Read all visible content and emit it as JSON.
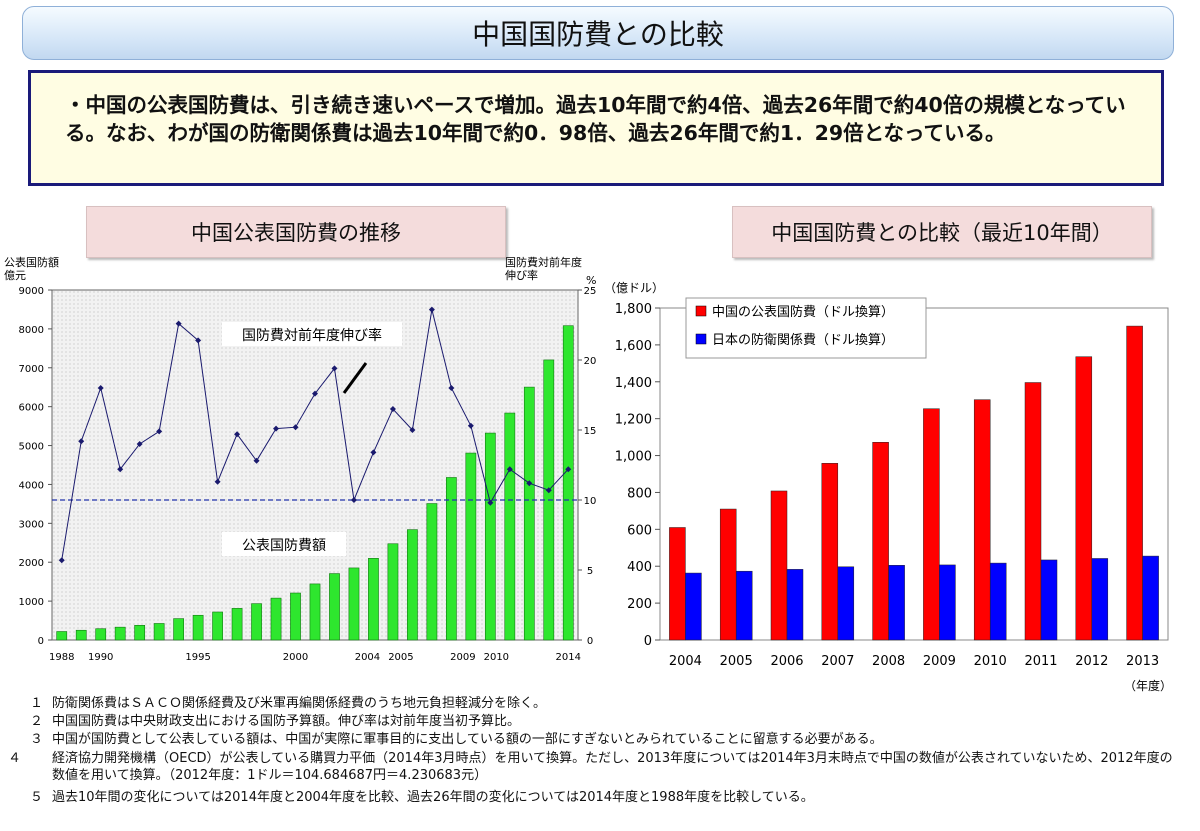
{
  "page_title": "中国国防費との比較",
  "summary": "・中国の公表国防費は、引き続き速いペースで増加。過去10年間で約4倍、過去26年間で約40倍の規模となっている。なお、わが国の防衛関係費は過去10年間で約0．98倍、過去26年間で約1．29倍となっている。",
  "chart_data": [
    {
      "type": "bar",
      "title": "中国公表国防費の推移",
      "ylabel_left_line1": "公表国防額",
      "ylabel_left_line2": "億元",
      "ylabel_right_line1": "国防費対前年度",
      "ylabel_right_line2": "伸び率",
      "ylabel_right_unit": "%",
      "ylim": [
        0,
        9000
      ],
      "y2lim": [
        0,
        25
      ],
      "y_ticks": [
        "0",
        "1000",
        "2000",
        "3000",
        "4000",
        "5000",
        "6000",
        "7000",
        "8000",
        "9000"
      ],
      "y2_ticks": [
        "0",
        "5",
        "10",
        "15",
        "20",
        "25"
      ],
      "x_tick_labels": [
        {
          "label": "1988",
          "year": 1988
        },
        {
          "label": "1990",
          "year": 1990
        },
        {
          "label": "1995",
          "year": 1995
        },
        {
          "label": "2000",
          "year": 2000
        },
        {
          "label": "2004",
          "year": 2004
        },
        {
          "label": "2005",
          "year": 2005
        },
        {
          "label": "2009",
          "year": 2009
        },
        {
          "label": "2010",
          "year": 2010
        },
        {
          "label": "2014",
          "year": 2014
        }
      ],
      "years": [
        1988,
        1989,
        1990,
        1991,
        1992,
        1993,
        1994,
        1995,
        1996,
        1997,
        1998,
        1999,
        2000,
        2001,
        2002,
        2003,
        2004,
        2005,
        2006,
        2007,
        2008,
        2009,
        2010,
        2011,
        2012,
        2013,
        2014
      ],
      "series": [
        {
          "name": "公表国防費額",
          "kind": "bar",
          "color": "#2ee62e",
          "values": [
            218,
            251,
            290,
            330,
            378,
            425,
            550,
            636,
            720,
            813,
            935,
            1077,
            1208,
            1442,
            1708,
            1853,
            2100,
            2475,
            2838,
            3509,
            4179,
            4807,
            5321,
            5836,
            6503,
            7202,
            8082
          ]
        },
        {
          "name": "国防費対前年度伸び率",
          "kind": "line",
          "color": "#1a1a6e",
          "values": [
            5.7,
            14.2,
            18.0,
            12.2,
            14.0,
            14.9,
            22.6,
            21.4,
            11.3,
            14.7,
            12.8,
            15.1,
            15.2,
            17.6,
            19.4,
            10.0,
            13.4,
            16.5,
            15.0,
            23.6,
            18.0,
            15.3,
            9.8,
            12.2,
            11.2,
            10.7,
            12.2
          ]
        }
      ],
      "reference_line": 10.0,
      "annotation_rate": "国防費対前年度伸び率",
      "annotation_amount": "公表国防費額"
    },
    {
      "type": "bar",
      "title": "中国国防費との比較（最近10年間）",
      "ylabel": "（億ドル）",
      "xlabel": "（年度）",
      "ylim": [
        0,
        1800
      ],
      "y_ticks": [
        "0",
        "200",
        "400",
        "600",
        "800",
        "1,000",
        "1,200",
        "1,400",
        "1,600",
        "1,800"
      ],
      "categories": [
        "2004",
        "2005",
        "2006",
        "2007",
        "2008",
        "2009",
        "2010",
        "2011",
        "2012",
        "2013"
      ],
      "series": [
        {
          "name": "中国の公表国防費（ドル換算）",
          "color": "#ff0000",
          "values": [
            610,
            710,
            808,
            958,
            1072,
            1254,
            1303,
            1396,
            1536,
            1702
          ]
        },
        {
          "name": "日本の防衛関係費（ドル換算）",
          "color": "#0000ff",
          "values": [
            363,
            373,
            383,
            397,
            405,
            407,
            417,
            434,
            442,
            455
          ]
        }
      ]
    }
  ],
  "notes": [
    {
      "num": "１",
      "text": "防衛関係費はＳＡＣＯ関係経費及び米軍再編関係経費のうち地元負担軽減分を除く。"
    },
    {
      "num": "２",
      "text": "中国国防費は中央財政支出における国防予算額。伸び率は対前年度当初予算比。"
    },
    {
      "num": "３",
      "text": "中国が国防費として公表している額は、中国が実際に軍事目的に支出している額の一部にすぎないとみられていることに留意する必要がある。"
    },
    {
      "num": "４",
      "text": "経済協力開発機構（OECD）が公表している購買力平価（2014年3月時点）を用いて換算。ただし、2013年度については2014年3月末時点で中国の数値が公表されていないため、2012年度の数値を用いて換算。（2012年度：1ドル＝104.684687円＝4.230683元）"
    },
    {
      "num": "５",
      "text": "過去10年間の変化については2014年度と2004年度を比較、過去26年間の変化については2014年度と1988年度を比較している。"
    }
  ]
}
